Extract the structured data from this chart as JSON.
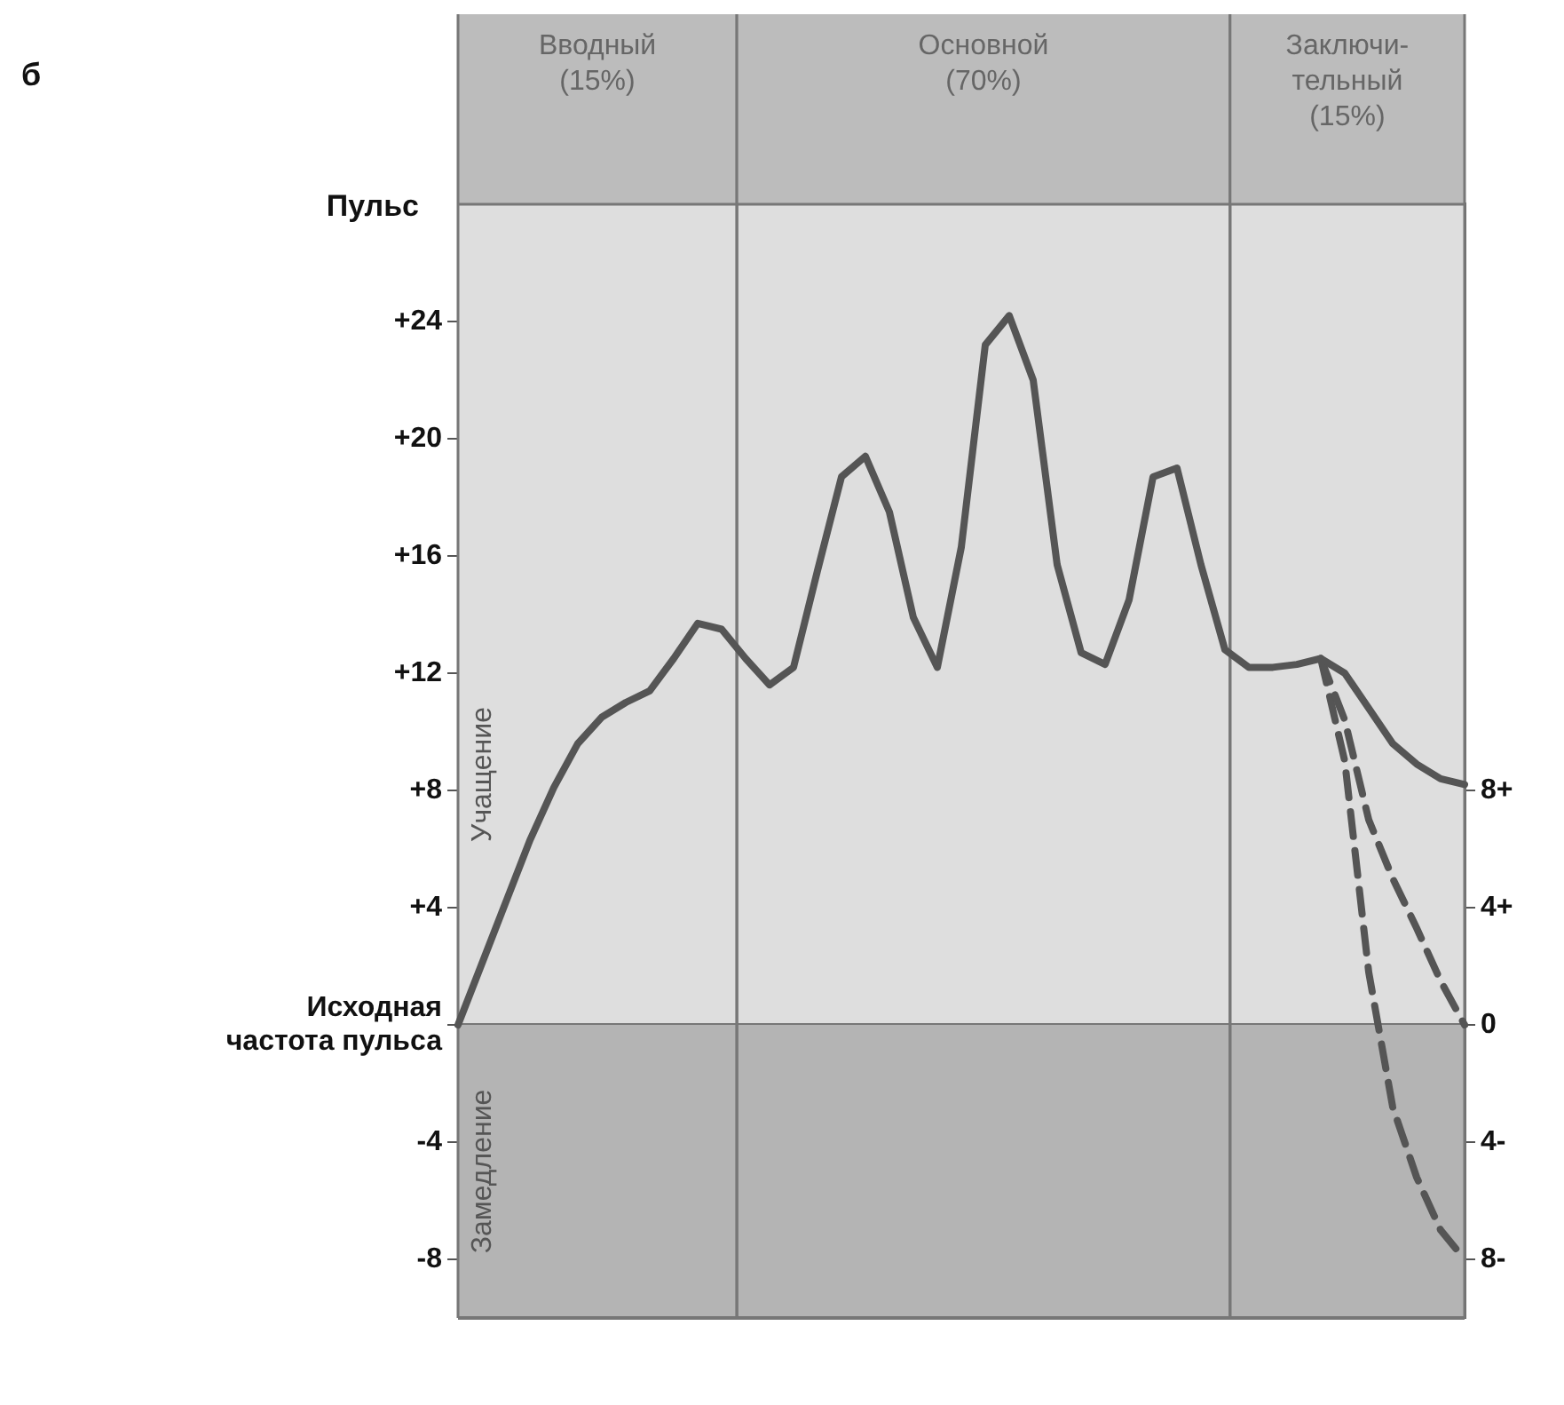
{
  "chart_data": {
    "type": "line",
    "ylabel": "Пульс",
    "annotations": [
      "б",
      "Вводный\n(15%)",
      "Основной\n(70%)",
      "Заключи-\nтельный\n(15%)"
    ],
    "categories": [
      null,
      null,
      null,
      null,
      null,
      null,
      null,
      null,
      null,
      null,
      null,
      null,
      null,
      null,
      null,
      null,
      null,
      null,
      null,
      null,
      null,
      null,
      null,
      null,
      null,
      null,
      null,
      null,
      null,
      null,
      null,
      null,
      null,
      null,
      null,
      null,
      null,
      null,
      null,
      null,
      null,
      null,
      null
    ],
    "series": [
      {
        "color": "#555555",
        "line_style": "solid",
        "values": [
          0,
          2.1,
          4.2,
          6.3,
          8.1,
          9.6,
          10.5,
          11.0,
          11.4,
          12.5,
          13.7,
          13.5,
          12.5,
          11.6,
          12.2,
          15.5,
          18.7,
          19.4,
          17.5,
          13.9,
          12.2,
          16.3,
          23.2,
          24.2,
          22.0,
          15.7,
          12.7,
          12.3,
          14.5,
          18.7,
          19.0,
          15.7,
          12.8,
          12.2,
          12.2,
          12.3,
          12.5,
          12.0,
          10.8,
          9.6,
          8.9,
          8.4,
          8.2
        ]
      },
      {
        "color": "#555555",
        "line_style": "dashed",
        "values": [
          null,
          null,
          null,
          null,
          null,
          null,
          null,
          null,
          null,
          null,
          null,
          null,
          null,
          null,
          null,
          null,
          null,
          null,
          null,
          null,
          null,
          null,
          null,
          null,
          null,
          null,
          null,
          null,
          null,
          null,
          null,
          null,
          null,
          null,
          null,
          null,
          12.5,
          10.4,
          7.0,
          5.0,
          3.3,
          1.5,
          0
        ]
      },
      {
        "color": "#555555",
        "line_style": "dashed",
        "values": [
          null,
          null,
          null,
          null,
          null,
          null,
          null,
          null,
          null,
          null,
          null,
          null,
          null,
          null,
          null,
          null,
          null,
          null,
          null,
          null,
          null,
          null,
          null,
          null,
          null,
          null,
          null,
          null,
          null,
          null,
          null,
          null,
          null,
          null,
          null,
          null,
          12.5,
          9.0,
          1.8,
          -2.8,
          -5.2,
          -7.0,
          -8
        ]
      }
    ],
    "ylim": [
      -10,
      28
    ],
    "yticks": [
      {
        "value": -8,
        "label": "-8"
      },
      {
        "value": -4,
        "label": "-4"
      },
      {
        "value": 0,
        "label": "Исходная\nчастота пульса"
      },
      {
        "value": 4,
        "label": "+4"
      },
      {
        "value": 8,
        "label": "+8"
      },
      {
        "value": 12,
        "label": "+12"
      },
      {
        "value": 16,
        "label": "+16"
      },
      {
        "value": 20,
        "label": "+20"
      },
      {
        "value": 24,
        "label": "+24"
      }
    ],
    "y2lim": [
      -10,
      28
    ],
    "y2ticks": [
      {
        "value": -8,
        "label": "8-"
      },
      {
        "value": -4,
        "label": "4-"
      },
      0,
      {
        "value": 4,
        "label": "4+"
      },
      {
        "value": 8,
        "label": "8+"
      }
    ],
    "bands": [
      {
        "axis": "y",
        "from": 0,
        "to": 28,
        "label": "Учащение",
        "color": "#dedede"
      },
      {
        "axis": "y",
        "from": -10,
        "to": 0,
        "label": "Замедление",
        "color": "#b4b4b4"
      }
    ],
    "marker": "none"
  }
}
